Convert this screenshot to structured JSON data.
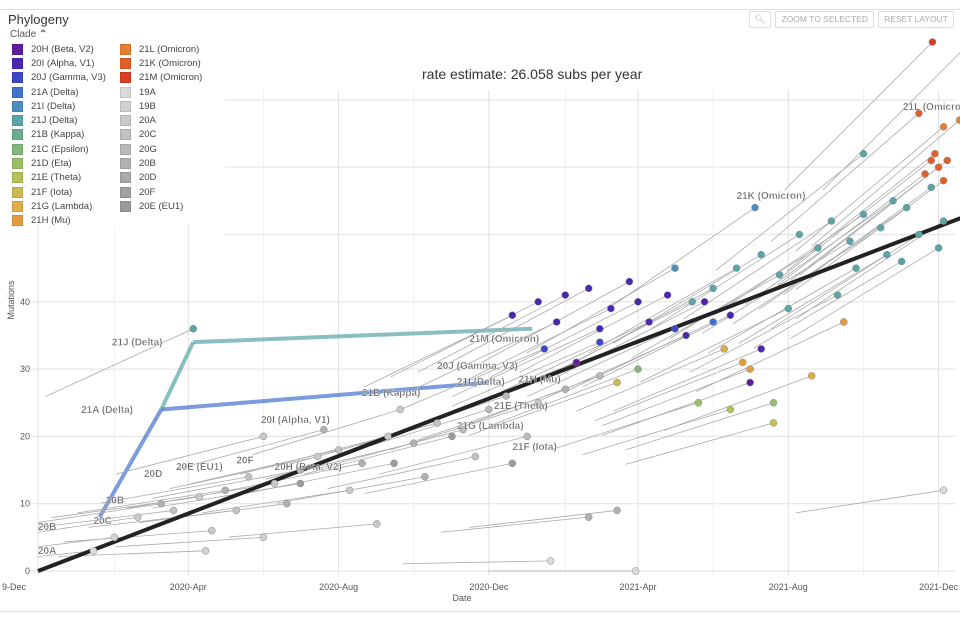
{
  "panel": {
    "title": "Phylogeny",
    "legend_toggle": "Clade",
    "rate_text": "rate estimate: 26.058 subs per year"
  },
  "buttons": {
    "zoom_icon": "magnifier-icon",
    "zoom_to_selected": "ZOOM TO SELECTED",
    "reset_layout": "RESET LAYOUT"
  },
  "legend": [
    {
      "label": "20H (Beta, V2)",
      "color": "#5E1D9D"
    },
    {
      "label": "20I (Alpha, V1)",
      "color": "#4B26B1"
    },
    {
      "label": "20J (Gamma, V3)",
      "color": "#3F47C9"
    },
    {
      "label": "21A (Delta)",
      "color": "#4272CE"
    },
    {
      "label": "21I (Delta)",
      "color": "#4B8EC1"
    },
    {
      "label": "21J (Delta)",
      "color": "#5AA5A8"
    },
    {
      "label": "21B (Kappa)",
      "color": "#6BAE8F"
    },
    {
      "label": "21C (Epsilon)",
      "color": "#80B97A"
    },
    {
      "label": "21D (Eta)",
      "color": "#98BE66"
    },
    {
      "label": "21E (Theta)",
      "color": "#B3C05A"
    },
    {
      "label": "21F (Iota)",
      "color": "#CBBA4E"
    },
    {
      "label": "21G (Lambda)",
      "color": "#DDAE46"
    },
    {
      "label": "21H (Mu)",
      "color": "#E69A3F"
    },
    {
      "label": "21L (Omicron)",
      "color": "#E68133"
    },
    {
      "label": "21K (Omicron)",
      "color": "#E35F2A"
    },
    {
      "label": "21M (Omicron)",
      "color": "#DB3E24"
    },
    {
      "label": "19A",
      "color": "#D8DADB"
    },
    {
      "label": "19B",
      "color": "#D0D1D2"
    },
    {
      "label": "20A",
      "color": "#C8C9CA"
    },
    {
      "label": "20C",
      "color": "#C0C1C2"
    },
    {
      "label": "20G",
      "color": "#B8B9BA"
    },
    {
      "label": "20B",
      "color": "#B0B1B2"
    },
    {
      "label": "20D",
      "color": "#A8A9AA"
    },
    {
      "label": "20F",
      "color": "#A1A2A3"
    },
    {
      "label": "20E (EU1)",
      "color": "#9A9B9C"
    }
  ],
  "chart_data": {
    "type": "scatter",
    "xlabel": "Date",
    "ylabel": "Mutations",
    "xlim": [
      "2019-12-01",
      "2021-12-31"
    ],
    "ylim": [
      0,
      80
    ],
    "x_ticks": [
      {
        "date": "2019-12-01",
        "label": "9-Dec"
      },
      {
        "date": "2020-04-01",
        "label": "2020-Apr"
      },
      {
        "date": "2020-08-01",
        "label": "2020-Aug"
      },
      {
        "date": "2020-12-01",
        "label": "2020-Dec"
      },
      {
        "date": "2021-04-01",
        "label": "2021-Apr"
      },
      {
        "date": "2021-08-01",
        "label": "2021-Aug"
      },
      {
        "date": "2021-12-01",
        "label": "2021-Dec"
      }
    ],
    "y_ticks": [
      0,
      10,
      20,
      30,
      40
    ],
    "y_gridlines": [
      0,
      10,
      20,
      30,
      40,
      50,
      60,
      70
    ],
    "grid": true,
    "regression": {
      "rate_per_year": 26.058,
      "start": [
        "2019-12-01",
        0
      ],
      "end": [
        "2021-12-27",
        53
      ]
    },
    "branches": [
      {
        "from": [
          "2020-01-20",
          8
        ],
        "to": [
          "2020-03-10",
          24
        ],
        "clade": "21A (Delta)"
      },
      {
        "from": [
          "2020-03-10",
          24
        ],
        "to": [
          "2020-04-05",
          34
        ],
        "clade": "21J (Delta)"
      },
      {
        "from": [
          "2020-04-05",
          34
        ],
        "to": [
          "2021-01-05",
          36
        ],
        "clade": "21J (Delta)"
      },
      {
        "from": [
          "2020-03-10",
          24
        ],
        "to": [
          "2020-12-01",
          28
        ],
        "clade": "21A (Delta)"
      }
    ],
    "clade_labels": [
      {
        "text": "21L (Omicron)",
        "date": "2021-11-02",
        "y": 68.5
      },
      {
        "text": "21K (Omicron)",
        "date": "2021-06-20",
        "y": 55.3
      },
      {
        "text": "21M (Omicron)",
        "date": "2020-11-15",
        "y": 34
      },
      {
        "text": "20J (Gamma, V3)",
        "date": "2020-10-20",
        "y": 30
      },
      {
        "text": "21I (Delta)",
        "date": "2020-11-05",
        "y": 29.4
      },
      {
        "text": "21E (Theta)",
        "date": "2020-12-05",
        "y": 29.4
      },
      {
        "text": "21G (Lambda)",
        "date": "2020-11-05",
        "y": 28.2
      },
      {
        "text": "21H (Mu)",
        "date": "2020-12-25",
        "y": 28
      },
      {
        "text": "21B (Kappa)",
        "date": "2020-08-20",
        "y": 26
      },
      {
        "text": "20I (Alpha, V1)",
        "date": "2020-05-30",
        "y": 22
      },
      {
        "text": "21F (Iota)",
        "date": "2020-12-20",
        "y": 18
      },
      {
        "text": "21J (Delta)",
        "date": "2020-01-30",
        "y": 33.5
      },
      {
        "text": "21A (Delta)",
        "date": "2020-01-05",
        "y": 23.5
      },
      {
        "text": "20D",
        "date": "2020-02-25",
        "y": 14
      },
      {
        "text": "20E (EU1)",
        "date": "2020-03-22",
        "y": 15
      },
      {
        "text": "20F",
        "date": "2020-05-10",
        "y": 16
      },
      {
        "text": "20H (Beta, V2)",
        "date": "2020-06-10",
        "y": 15
      },
      {
        "text": "20B",
        "date": "2020-01-25",
        "y": 10
      },
      {
        "text": "20C",
        "date": "2020-01-15",
        "y": 7
      },
      {
        "text": "20A",
        "date": "2019-12-01",
        "y": 2.5
      },
      {
        "text": "20B",
        "date": "2019-12-01",
        "y": 2.5
      }
    ],
    "points": [
      [
        "2020-01-15",
        3,
        "19A"
      ],
      [
        "2020-02-01",
        5,
        "19B"
      ],
      [
        "2020-02-20",
        8,
        "20A"
      ],
      [
        "2020-03-10",
        10,
        "20B"
      ],
      [
        "2020-03-20",
        9,
        "20C"
      ],
      [
        "2020-04-10",
        11,
        "20A"
      ],
      [
        "2020-05-01",
        12,
        "20B"
      ],
      [
        "2020-05-20",
        14,
        "20C"
      ],
      [
        "2020-06-10",
        13,
        "20A"
      ],
      [
        "2020-07-01",
        15,
        "20B"
      ],
      [
        "2020-07-15",
        17,
        "20A"
      ],
      [
        "2020-08-01",
        18,
        "20C"
      ],
      [
        "2020-08-20",
        16,
        "20B"
      ],
      [
        "2020-09-10",
        20,
        "20A"
      ],
      [
        "2020-10-01",
        19,
        "20B"
      ],
      [
        "2020-10-20",
        22,
        "20C"
      ],
      [
        "2020-11-10",
        21,
        "20G"
      ],
      [
        "2020-12-01",
        24,
        "20G"
      ],
      [
        "2020-12-15",
        26,
        "20G"
      ],
      [
        "2021-01-10",
        25,
        "20A"
      ],
      [
        "2021-02-01",
        27,
        "20B"
      ],
      [
        "2021-03-01",
        29,
        "20G"
      ],
      [
        "2021-03-15",
        9,
        "20B"
      ],
      [
        "2021-01-20",
        1.5,
        "19A"
      ],
      [
        "2021-03-30",
        0,
        "19A"
      ],
      [
        "2021-12-05",
        12,
        "19A"
      ],
      [
        "2020-06-01",
        5,
        "19B"
      ],
      [
        "2020-04-15",
        3,
        "19B"
      ],
      [
        "2020-09-01",
        7,
        "20A"
      ],
      [
        "2021-02-20",
        8,
        "20B"
      ],
      [
        "2020-04-20",
        6,
        "20A"
      ],
      [
        "2020-05-10",
        9,
        "20C"
      ],
      [
        "2020-06-20",
        10,
        "20B"
      ],
      [
        "2020-08-10",
        12,
        "20A"
      ],
      [
        "2020-10-10",
        14,
        "20B"
      ],
      [
        "2020-11-20",
        17,
        "20C"
      ],
      [
        "2021-01-01",
        20,
        "20G"
      ],
      [
        "2020-09-20",
        24,
        "20A"
      ],
      [
        "2020-07-20",
        21,
        "20B"
      ],
      [
        "2020-06-01",
        20,
        "20A"
      ],
      [
        "2020-07-01",
        13,
        "20E (EU1)"
      ],
      [
        "2020-09-15",
        16,
        "20E (EU1)"
      ],
      [
        "2020-11-01",
        20,
        "20E (EU1)"
      ],
      [
        "2020-12-20",
        16,
        "20E (EU1)"
      ],
      [
        "2020-12-20",
        38,
        "20I (Alpha, V1)"
      ],
      [
        "2021-01-10",
        40,
        "20I (Alpha, V1)"
      ],
      [
        "2021-02-01",
        41,
        "20I (Alpha, V1)"
      ],
      [
        "2021-02-20",
        42,
        "20I (Alpha, V1)"
      ],
      [
        "2021-03-10",
        39,
        "20I (Alpha, V1)"
      ],
      [
        "2021-03-25",
        43,
        "20I (Alpha, V1)"
      ],
      [
        "2021-04-10",
        37,
        "20I (Alpha, V1)"
      ],
      [
        "2021-04-25",
        41,
        "20I (Alpha, V1)"
      ],
      [
        "2021-05-10",
        35,
        "20I (Alpha, V1)"
      ],
      [
        "2021-05-25",
        40,
        "20I (Alpha, V1)"
      ],
      [
        "2021-06-15",
        38,
        "20I (Alpha, V1)"
      ],
      [
        "2021-07-10",
        33,
        "20I (Alpha, V1)"
      ],
      [
        "2021-03-01",
        36,
        "20I (Alpha, V1)"
      ],
      [
        "2021-01-25",
        37,
        "20I (Alpha, V1)"
      ],
      [
        "2021-04-01",
        40,
        "20I (Alpha, V1)"
      ],
      [
        "2021-01-15",
        33,
        "20J (Gamma, V3)"
      ],
      [
        "2021-03-01",
        34,
        "20J (Gamma, V3)"
      ],
      [
        "2021-05-01",
        36,
        "20J (Gamma, V3)"
      ],
      [
        "2021-02-10",
        31,
        "20H (Beta, V2)"
      ],
      [
        "2021-07-01",
        28,
        "20H (Beta, V2)"
      ],
      [
        "2021-05-15",
        40,
        "21J (Delta)"
      ],
      [
        "2021-06-01",
        42,
        "21J (Delta)"
      ],
      [
        "2021-06-20",
        45,
        "21J (Delta)"
      ],
      [
        "2021-07-10",
        47,
        "21J (Delta)"
      ],
      [
        "2021-07-25",
        44,
        "21J (Delta)"
      ],
      [
        "2021-08-10",
        50,
        "21J (Delta)"
      ],
      [
        "2021-08-25",
        48,
        "21J (Delta)"
      ],
      [
        "2021-09-05",
        52,
        "21J (Delta)"
      ],
      [
        "2021-09-20",
        49,
        "21J (Delta)"
      ],
      [
        "2021-10-01",
        53,
        "21J (Delta)"
      ],
      [
        "2021-10-15",
        51,
        "21J (Delta)"
      ],
      [
        "2021-10-25",
        55,
        "21J (Delta)"
      ],
      [
        "2021-11-05",
        54,
        "21J (Delta)"
      ],
      [
        "2021-11-15",
        50,
        "21J (Delta)"
      ],
      [
        "2021-11-25",
        57,
        "21J (Delta)"
      ],
      [
        "2021-12-01",
        48,
        "21J (Delta)"
      ],
      [
        "2021-12-05",
        52,
        "21J (Delta)"
      ],
      [
        "2021-09-10",
        41,
        "21J (Delta)"
      ],
      [
        "2021-11-01",
        46,
        "21J (Delta)"
      ],
      [
        "2021-08-01",
        39,
        "21J (Delta)"
      ],
      [
        "2021-10-01",
        62,
        "21J (Delta)"
      ],
      [
        "2020-04-05",
        36,
        "21J (Delta)"
      ],
      [
        "2021-09-25",
        45,
        "21J (Delta)"
      ],
      [
        "2021-10-20",
        47,
        "21J (Delta)"
      ],
      [
        "2021-06-01",
        37,
        "21A (Delta)"
      ],
      [
        "2021-07-05",
        54,
        "21I (Delta)"
      ],
      [
        "2021-05-01",
        45,
        "21I (Delta)"
      ],
      [
        "2021-11-20",
        59,
        "21K (Omicron)"
      ],
      [
        "2021-11-25",
        61,
        "21K (Omicron)"
      ],
      [
        "2021-12-01",
        60,
        "21K (Omicron)"
      ],
      [
        "2021-12-05",
        58,
        "21K (Omicron)"
      ],
      [
        "2021-11-28",
        62,
        "21K (Omicron)"
      ],
      [
        "2021-12-08",
        61,
        "21K (Omicron)"
      ],
      [
        "2021-11-15",
        68,
        "21K (Omicron)"
      ],
      [
        "2021-11-26",
        78.6,
        "21M (Omicron)"
      ],
      [
        "2021-12-27",
        78.6,
        "21L (Omicron)"
      ],
      [
        "2021-12-05",
        66,
        "21L (Omicron)"
      ],
      [
        "2021-12-18",
        67,
        "21L (Omicron)"
      ],
      [
        "2021-04-01",
        30,
        "21C (Epsilon)"
      ],
      [
        "2021-05-20",
        25,
        "21D (Eta)"
      ],
      [
        "2021-06-15",
        24,
        "21E (Theta)"
      ],
      [
        "2021-03-15",
        28,
        "21F (Iota)"
      ],
      [
        "2021-07-20",
        22,
        "21F (Iota)"
      ],
      [
        "2021-06-10",
        33,
        "21G (Lambda)"
      ],
      [
        "2021-07-01",
        30,
        "21H (Mu)"
      ],
      [
        "2021-09-15",
        37,
        "21H (Mu)"
      ],
      [
        "2021-08-20",
        29,
        "21G (Lambda)"
      ],
      [
        "2021-07-20",
        25,
        "21D (Eta)"
      ],
      [
        "2021-06-25",
        31,
        "21H (Mu)"
      ]
    ]
  }
}
